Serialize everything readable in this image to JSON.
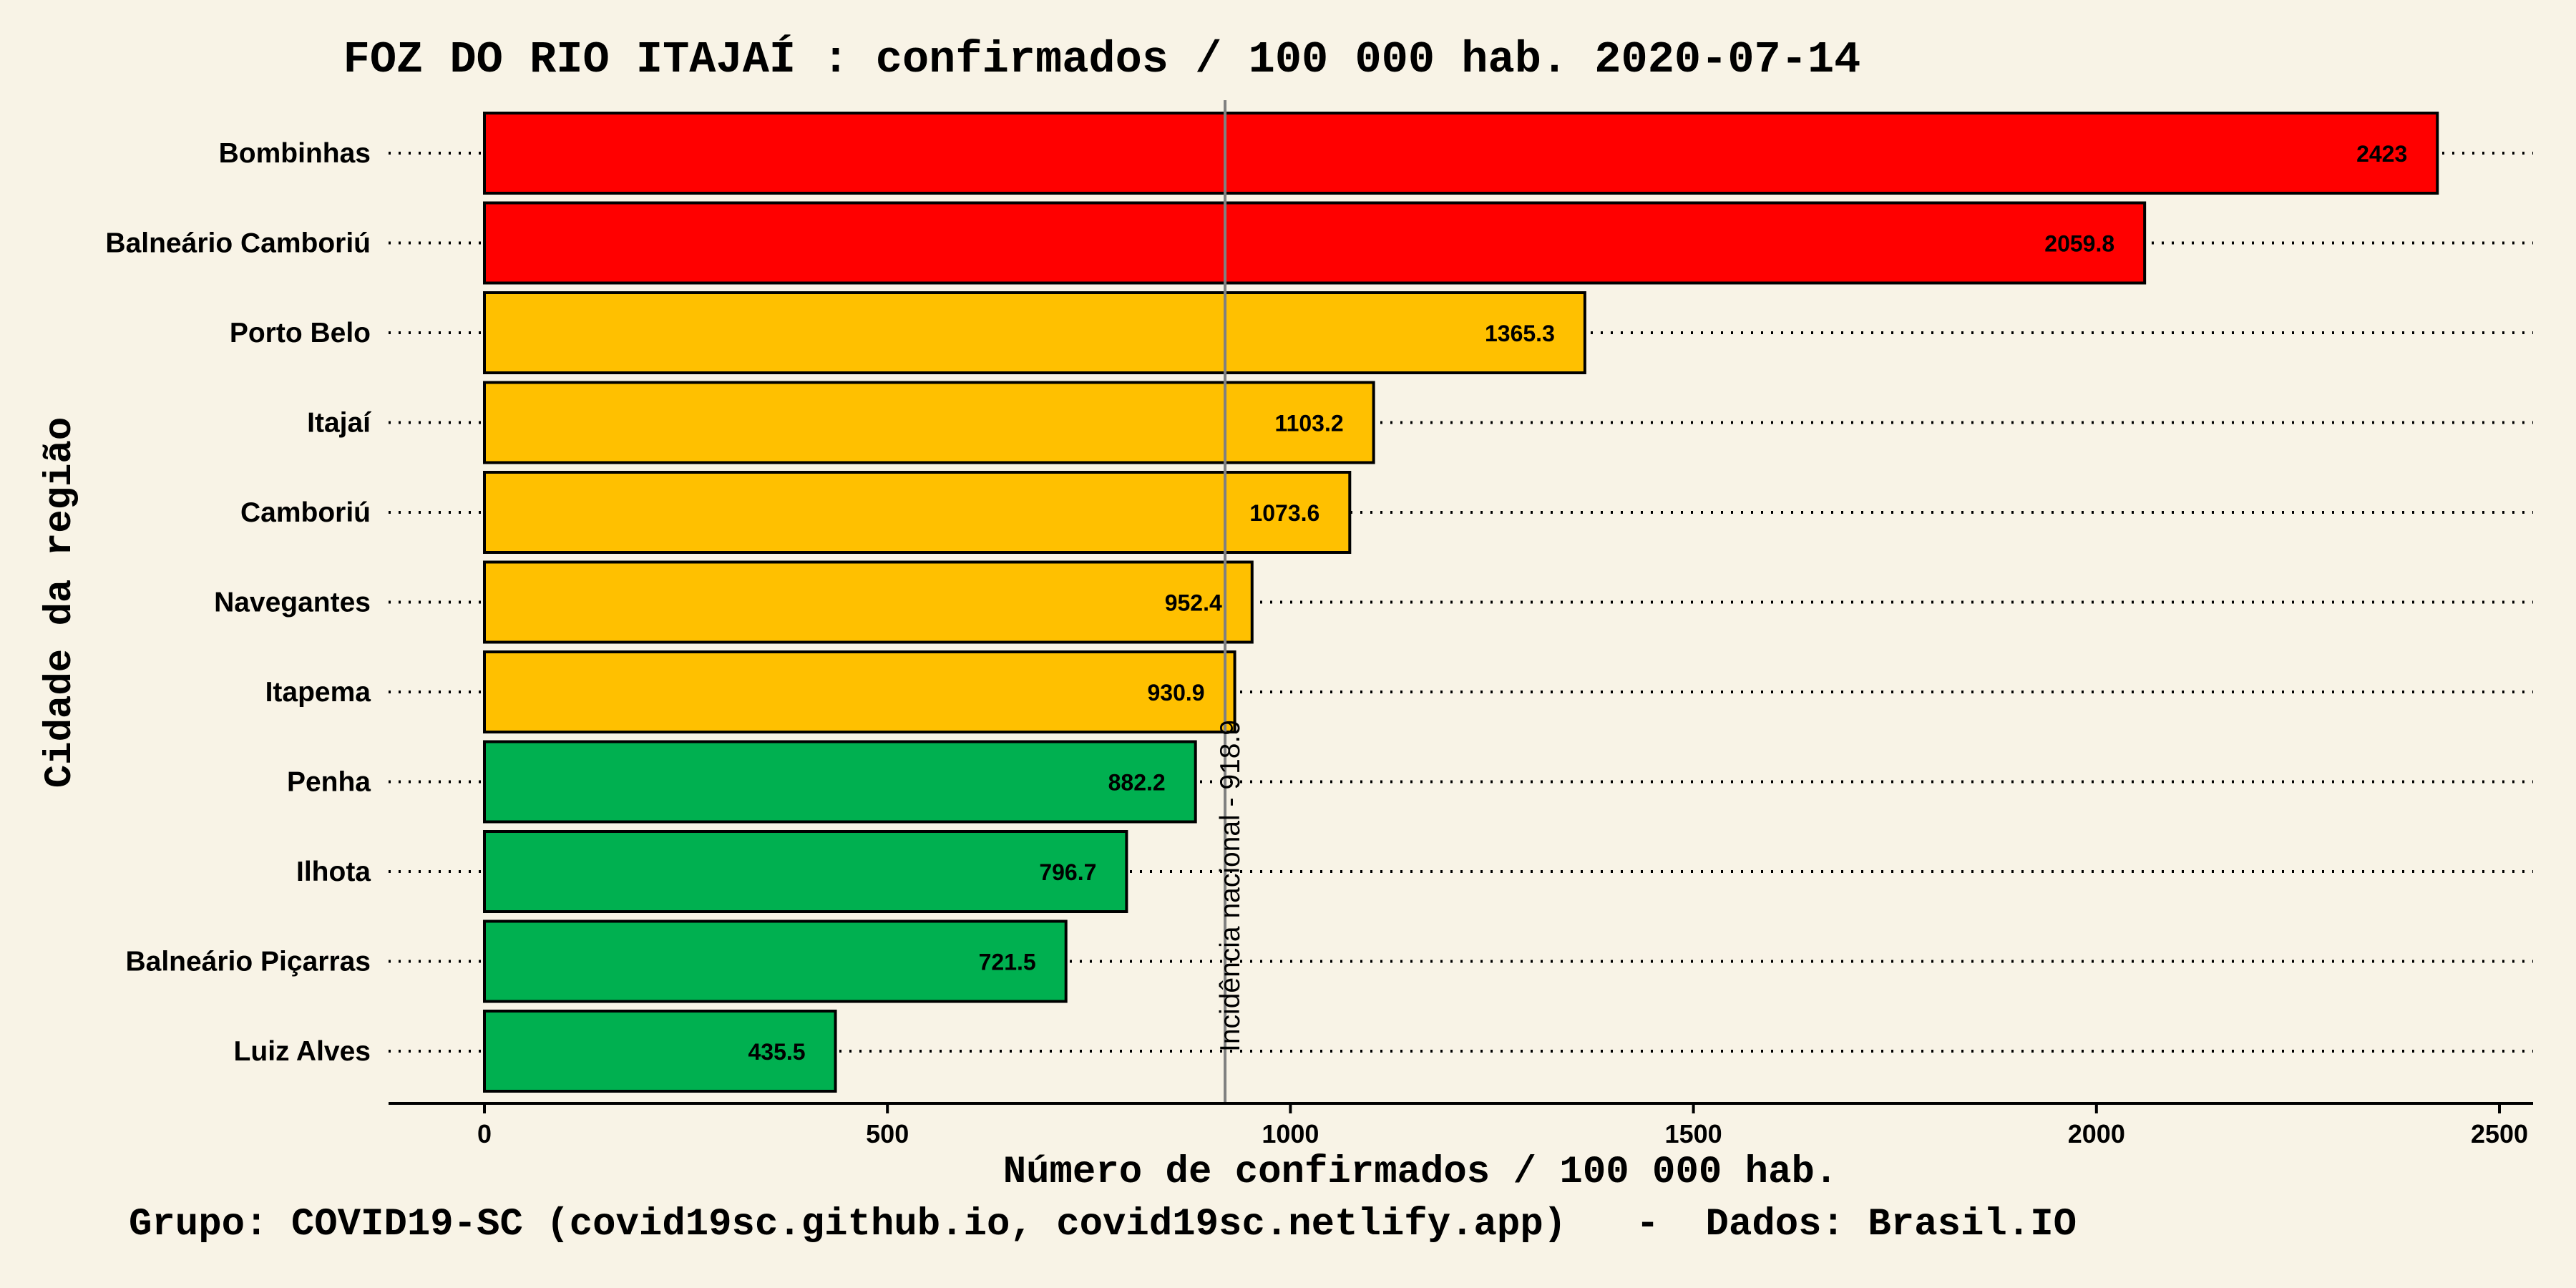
{
  "chart_data": {
    "type": "bar",
    "orientation": "horizontal",
    "title": "FOZ DO RIO ITAJAÍ : confirmados / 100 000 hab. 2020-07-14",
    "xlabel": "Número de confirmados / 100 000 hab.",
    "ylabel": "Cidade da região",
    "caption": "Grupo: COVID19-SC (covid19sc.github.io, covid19sc.netlify.app)   -  Dados: Brasil.IO",
    "xlim": [
      0,
      2500
    ],
    "xticks": [
      0,
      500,
      1000,
      1500,
      2000,
      2500
    ],
    "grid": "dotted horizontal guides",
    "categories": [
      "Bombinhas",
      "Balneário Camboriú",
      "Porto Belo",
      "Itajaí",
      "Camboriú",
      "Navegantes",
      "Itapema",
      "Penha",
      "Ilhota",
      "Balneário Piçarras",
      "Luiz Alves"
    ],
    "values": [
      2423,
      2059.8,
      1365.3,
      1103.2,
      1073.6,
      952.4,
      930.9,
      882.2,
      796.7,
      721.5,
      435.5
    ],
    "value_labels": [
      "2423",
      "2059.8",
      "1365.3",
      "1103.2",
      "1073.6",
      "952.4",
      "930.9",
      "882.2",
      "796.7",
      "721.5",
      "435.5"
    ],
    "colors": [
      "#ff0000",
      "#ff0000",
      "#ffc000",
      "#ffc000",
      "#ffc000",
      "#ffc000",
      "#ffc000",
      "#00b050",
      "#00b050",
      "#00b050",
      "#00b050"
    ],
    "reference_line": {
      "value": 918.9,
      "label": "Incidência nacional - 918.9",
      "color": "#808080"
    }
  }
}
